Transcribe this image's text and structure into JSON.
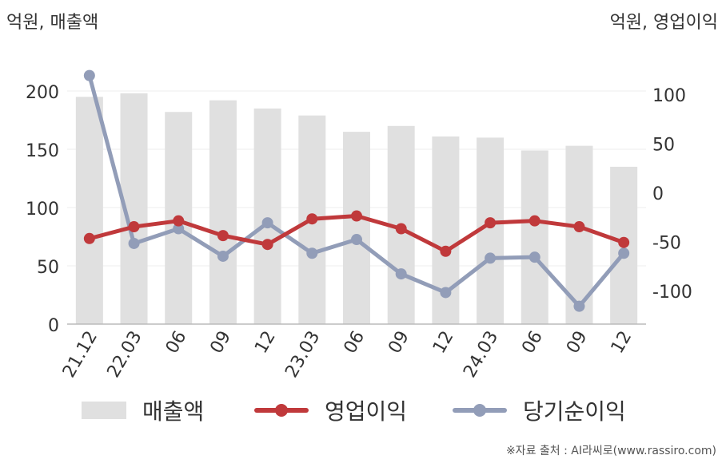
{
  "units": {
    "left": "억원, 매출액",
    "right": "억원, 영업이익"
  },
  "legend": {
    "revenue": "매출액",
    "operating": "영업이익",
    "net": "당기순이익"
  },
  "source": "※자료 출처 : AI라씨로(www.rassiro.com)",
  "colors": {
    "revenue": "#e0e0e0",
    "operating": "#c0393b",
    "net": "#929db8",
    "grid": "#eeeeee",
    "axis": "#bbbbbb"
  },
  "chart_data": {
    "type": "bar",
    "categories": [
      "21.12",
      "22.03",
      "06",
      "09",
      "12",
      "23.03",
      "06",
      "09",
      "12",
      "24.03",
      "06",
      "09",
      "12"
    ],
    "y_left": {
      "label": "억원, 매출액",
      "ticks": [
        0,
        50,
        100,
        150,
        200
      ],
      "range": [
        0,
        200
      ]
    },
    "y_right": {
      "label": "억원, 영업이익",
      "ticks": [
        -100,
        -50,
        0,
        50,
        100
      ],
      "range": [
        -135,
        100
      ]
    },
    "series": [
      {
        "name": "매출액",
        "type": "bar",
        "axis": "left",
        "values": [
          195,
          198,
          182,
          192,
          185,
          179,
          165,
          170,
          161,
          160,
          149,
          153,
          135
        ]
      },
      {
        "name": "영업이익",
        "type": "line",
        "axis": "right",
        "values": [
          -47,
          -35,
          -29,
          -44,
          -53,
          -27,
          -24,
          -37,
          -60,
          -31,
          -29,
          -35,
          -51
        ]
      },
      {
        "name": "당기순이익",
        "type": "line",
        "axis": "right",
        "values": [
          119,
          -52,
          -37,
          -65,
          -31,
          -62,
          -48,
          -83,
          -102,
          -67,
          -66,
          -116,
          -62
        ]
      }
    ],
    "grid": true,
    "legend_position": "bottom"
  }
}
